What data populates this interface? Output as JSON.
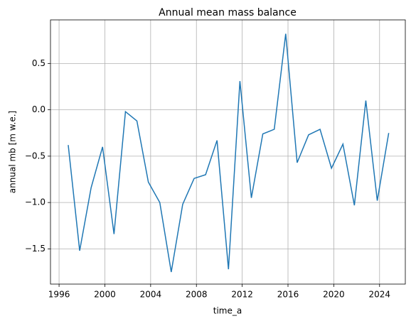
{
  "chart_data": {
    "type": "line",
    "title": "Annual mean mass balance",
    "x_label": "time_a",
    "y_label": "annual mb [m w.e.]",
    "x": [
      1996.8,
      1997.8,
      1998.8,
      1999.8,
      2000.8,
      2001.8,
      2002.8,
      2003.8,
      2004.8,
      2005.8,
      2006.8,
      2007.8,
      2008.8,
      2009.8,
      2010.8,
      2011.8,
      2012.8,
      2013.8,
      2014.8,
      2015.8,
      2016.8,
      2017.8,
      2018.8,
      2019.8,
      2020.8,
      2021.8,
      2022.8,
      2023.8,
      2024.8
    ],
    "series": [
      {
        "color": "#1f77b4",
        "values": [
          -0.38,
          -1.52,
          -0.84,
          -0.4,
          -1.34,
          -0.02,
          -0.12,
          -0.78,
          -1.0,
          -1.75,
          -1.02,
          -0.74,
          -0.7,
          -0.33,
          -1.72,
          0.31,
          -0.95,
          -0.26,
          -0.21,
          0.82,
          -0.57,
          -0.27,
          -0.21,
          -0.63,
          -0.37,
          -1.03,
          0.1,
          -0.98,
          -0.25
        ]
      }
    ],
    "xlim": [
      1995.25,
      2026.25
    ],
    "xticks": [
      1996,
      2000,
      2004,
      2008,
      2012,
      2016,
      2020,
      2024
    ],
    "ylim": [
      -1.88,
      0.97
    ],
    "yticks": [
      {
        "value": -1.5,
        "label": "−1.5"
      },
      {
        "value": -1.0,
        "label": "−1.0"
      },
      {
        "value": -0.5,
        "label": "−0.5"
      },
      {
        "value": 0.0,
        "label": "0.0"
      },
      0.5
    ],
    "grid": true
  }
}
